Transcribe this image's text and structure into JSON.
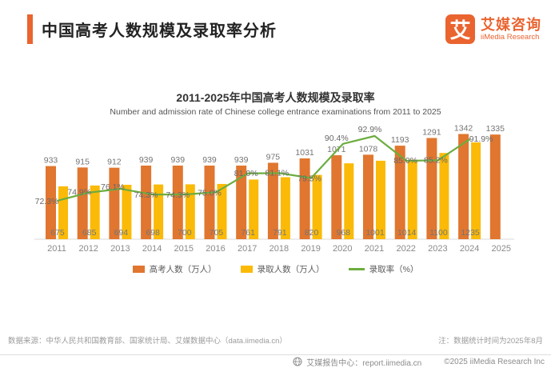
{
  "header": {
    "title": "中国高考人数规模及录取率分析",
    "logo": {
      "mark": "艾",
      "name": "艾媒咨询",
      "subtitle": "iiMedia Research"
    }
  },
  "chart": {
    "title": "2011-2025年中国高考人数规模及录取率",
    "subtitle": "Number and admission rate of Chinese college entrance examinations from 2011 to 2025"
  },
  "chart_data": {
    "type": "bar+line",
    "categories": [
      "2011",
      "2012",
      "2013",
      "2014",
      "2015",
      "2016",
      "2017",
      "2018",
      "2019",
      "2020",
      "2021",
      "2022",
      "2023",
      "2024",
      "2025"
    ],
    "series": [
      {
        "name": "高考人数（万人）",
        "type": "bar",
        "color": "#e0762f",
        "values": [
          933,
          915,
          912,
          939,
          939,
          939,
          939,
          975,
          1031,
          1071,
          1078,
          1193,
          1291,
          1342,
          1335
        ]
      },
      {
        "name": "录取人数（万人）",
        "type": "bar",
        "color": "#fbba07",
        "values": [
          675,
          685,
          694,
          698,
          700,
          705,
          761,
          791,
          820,
          968,
          1001,
          1014,
          1100,
          1235,
          null
        ]
      },
      {
        "name": "录取率（%）",
        "type": "line",
        "color": "#6cad3f",
        "values": [
          72.3,
          74.9,
          76.1,
          74.3,
          74.3,
          75.0,
          81.0,
          81.1,
          79.5,
          90.4,
          92.9,
          85.0,
          85.2,
          91.9,
          null
        ]
      }
    ],
    "ylim": [
      0,
      1400
    ],
    "rate_axis_range": [
      70,
      95
    ],
    "grid": false,
    "legend_position": "bottom",
    "axis_line_color": "#d9d9d9"
  },
  "legend": {
    "items": [
      {
        "label": "高考人数（万人）"
      },
      {
        "label": "录取人数（万人）"
      },
      {
        "label": "录取率（%）"
      }
    ]
  },
  "footer": {
    "source": "数据来源：中华人民共和国教育部、国家统计局、艾媒数据中心（data.iimedia.cn）",
    "note": "注：数据统计时间为2025年8月"
  },
  "bottom_bar": {
    "report_center": "艾媒报告中心：report.iimedia.cn",
    "copyright": "©2025  iiMedia Research  Inc"
  }
}
